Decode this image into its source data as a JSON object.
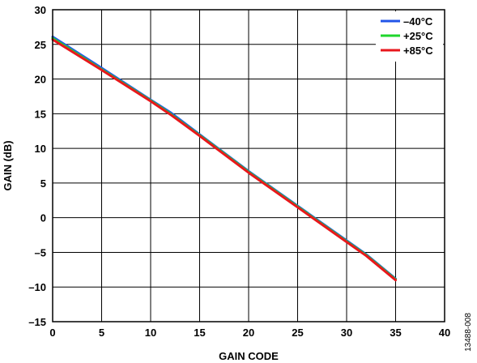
{
  "chart_data": {
    "type": "line",
    "xlabel": "GAIN CODE",
    "ylabel": "GAIN (dB)",
    "xlim": [
      0,
      40
    ],
    "ylim": [
      -15,
      30
    ],
    "xticks": [
      "0",
      "5",
      "10",
      "15",
      "20",
      "25",
      "30",
      "35",
      "40"
    ],
    "yticks": [
      "30",
      "25",
      "20",
      "15",
      "10",
      "5",
      "0",
      "–5",
      "–10",
      "–15"
    ],
    "grid": true,
    "legend_position": "top-right",
    "series": [
      {
        "name": "–40°C",
        "color": "#2155e8",
        "x": [
          0,
          5,
          10,
          12,
          15,
          20,
          25,
          30,
          32,
          35
        ],
        "y": [
          26.1,
          21.6,
          17.0,
          15.2,
          12.0,
          6.7,
          1.7,
          -3.3,
          -5.3,
          -8.8
        ]
      },
      {
        "name": "+25°C",
        "color": "#1fd62c",
        "x": [
          0,
          5,
          10,
          12,
          15,
          20,
          25,
          30,
          32,
          35
        ],
        "y": [
          25.9,
          21.4,
          16.9,
          15.0,
          11.9,
          6.6,
          1.6,
          -3.4,
          -5.4,
          -8.9
        ]
      },
      {
        "name": "+85°C",
        "color": "#e8171c",
        "x": [
          0,
          5,
          10,
          12,
          15,
          20,
          25,
          30,
          32,
          35
        ],
        "y": [
          25.7,
          21.3,
          16.8,
          14.9,
          11.8,
          6.5,
          1.5,
          -3.5,
          -5.5,
          -9.0
        ]
      }
    ]
  },
  "figure_id": "13488-008"
}
